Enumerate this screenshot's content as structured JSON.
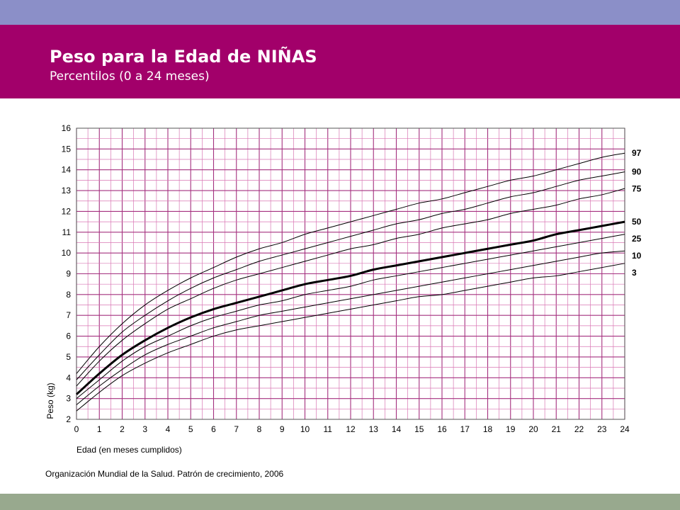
{
  "header": {
    "title": "Peso para la Edad de NIÑAS",
    "subtitle": "Percentilos (0 a 24 meses)"
  },
  "footer": {
    "source": "Organización Mundial de la Salud. Patrón de crecimiento, 2006"
  },
  "colors": {
    "top_band": "#8b8fc8",
    "header_band": "#a2006a",
    "bottom_band": "#98a98e",
    "grid_pink": "#d977b4",
    "grid_purple": "#a4307f",
    "curve": "#000000"
  },
  "chart_data": {
    "type": "line",
    "xlabel": "Edad (en meses cumplidos)",
    "ylabel": "Peso (kg)",
    "xlim": [
      0,
      24
    ],
    "ylim": [
      2,
      16
    ],
    "x_minor_step": 0.5,
    "y_minor_step": 0.5,
    "grid": true,
    "x_ticks": [
      "0",
      "1",
      "2",
      "3",
      "4",
      "5",
      "6",
      "7",
      "8",
      "9",
      "10",
      "11",
      "12",
      "13",
      "14",
      "15",
      "16",
      "17",
      "18",
      "19",
      "20",
      "21",
      "22",
      "23",
      "24"
    ],
    "y_ticks": [
      "2",
      "3",
      "4",
      "5",
      "6",
      "7",
      "8",
      "9",
      "10",
      "11",
      "12",
      "13",
      "14",
      "15",
      "16"
    ],
    "x": [
      0,
      1,
      2,
      3,
      4,
      5,
      6,
      7,
      8,
      9,
      10,
      11,
      12,
      13,
      14,
      15,
      16,
      17,
      18,
      19,
      20,
      21,
      22,
      23,
      24
    ],
    "series": [
      {
        "name": "97",
        "bold": false,
        "values": [
          4.2,
          5.5,
          6.6,
          7.5,
          8.2,
          8.8,
          9.3,
          9.8,
          10.2,
          10.5,
          10.9,
          11.2,
          11.5,
          11.8,
          12.1,
          12.4,
          12.6,
          12.9,
          13.2,
          13.5,
          13.7,
          14.0,
          14.3,
          14.6,
          14.8
        ]
      },
      {
        "name": "90",
        "bold": false,
        "values": [
          3.9,
          5.1,
          6.2,
          7.0,
          7.7,
          8.3,
          8.8,
          9.2,
          9.6,
          9.9,
          10.2,
          10.5,
          10.8,
          11.1,
          11.4,
          11.6,
          11.9,
          12.1,
          12.4,
          12.7,
          12.9,
          13.2,
          13.5,
          13.7,
          13.9
        ]
      },
      {
        "name": "75",
        "bold": false,
        "values": [
          3.6,
          4.8,
          5.8,
          6.6,
          7.3,
          7.8,
          8.3,
          8.7,
          9.0,
          9.3,
          9.6,
          9.9,
          10.2,
          10.4,
          10.7,
          10.9,
          11.2,
          11.4,
          11.6,
          11.9,
          12.1,
          12.3,
          12.6,
          12.8,
          13.1
        ]
      },
      {
        "name": "50",
        "bold": true,
        "values": [
          3.2,
          4.2,
          5.1,
          5.8,
          6.4,
          6.9,
          7.3,
          7.6,
          7.9,
          8.2,
          8.5,
          8.7,
          8.9,
          9.2,
          9.4,
          9.6,
          9.8,
          10.0,
          10.2,
          10.4,
          10.6,
          10.9,
          11.1,
          11.3,
          11.5
        ]
      },
      {
        "name": "25",
        "bold": false,
        "values": [
          3.0,
          3.9,
          4.8,
          5.5,
          6.0,
          6.5,
          6.9,
          7.2,
          7.5,
          7.7,
          8.0,
          8.2,
          8.4,
          8.7,
          8.9,
          9.1,
          9.3,
          9.5,
          9.7,
          9.9,
          10.1,
          10.3,
          10.5,
          10.7,
          10.9
        ]
      },
      {
        "name": "10",
        "bold": false,
        "values": [
          2.7,
          3.6,
          4.4,
          5.1,
          5.6,
          6.0,
          6.4,
          6.7,
          7.0,
          7.2,
          7.4,
          7.6,
          7.8,
          8.0,
          8.2,
          8.4,
          8.6,
          8.8,
          9.0,
          9.2,
          9.4,
          9.6,
          9.8,
          10.0,
          10.1
        ]
      },
      {
        "name": "3",
        "bold": false,
        "values": [
          2.4,
          3.3,
          4.1,
          4.7,
          5.2,
          5.6,
          6.0,
          6.3,
          6.5,
          6.7,
          6.9,
          7.1,
          7.3,
          7.5,
          7.7,
          7.9,
          8.0,
          8.2,
          8.4,
          8.6,
          8.8,
          8.9,
          9.1,
          9.3,
          9.5
        ]
      }
    ]
  }
}
